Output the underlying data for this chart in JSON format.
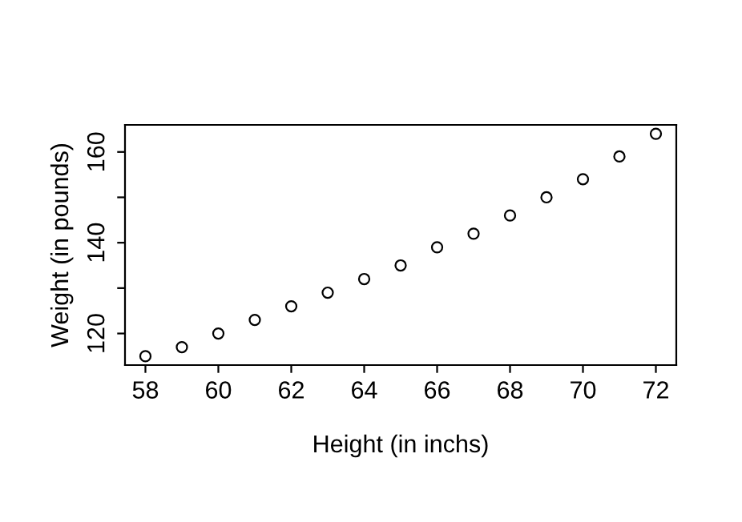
{
  "chart_data": {
    "type": "scatter",
    "xlabel": "Height (in inchs)",
    "ylabel": "Weight (in pounds)",
    "x": [
      58,
      59,
      60,
      61,
      62,
      63,
      64,
      65,
      66,
      67,
      68,
      69,
      70,
      71,
      72
    ],
    "values": [
      115,
      117,
      120,
      123,
      126,
      129,
      132,
      135,
      139,
      142,
      146,
      150,
      154,
      159,
      164
    ],
    "color": "#000000",
    "marker": "circle",
    "grid": false,
    "xlim": [
      57.44,
      72.56
    ],
    "ylim": [
      113.04,
      165.96
    ],
    "xticks": [
      58,
      60,
      62,
      64,
      66,
      68,
      70,
      72
    ],
    "yticks": [
      120,
      {
        "value": 130,
        "label": null
      },
      140,
      {
        "value": 150,
        "label": null
      },
      160
    ]
  }
}
